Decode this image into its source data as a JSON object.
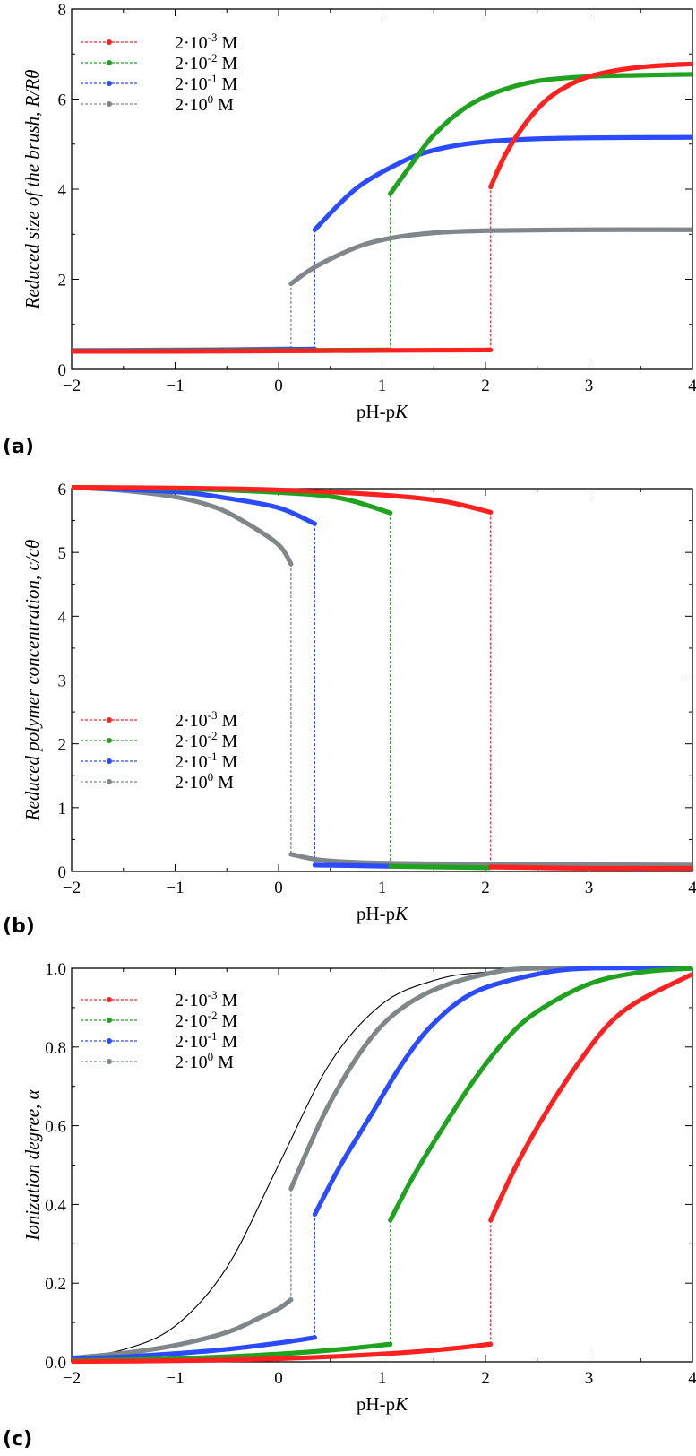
{
  "chart_data": [
    {
      "type": "line",
      "panel_label": "(a)",
      "xlabel": "pH-pK",
      "ylabel": "Reduced size of the brush, R/Rθ",
      "xlim": [
        -2,
        4
      ],
      "ylim": [
        0,
        8
      ],
      "xticks": [
        -2,
        -1,
        0,
        1,
        2,
        3,
        4
      ],
      "yticks": [
        0,
        2,
        4,
        6,
        8
      ],
      "grid": false,
      "legend_position": "top-left",
      "series": [
        {
          "name": "2·10⁻³ M",
          "label_base": "2·10",
          "label_exp": "-3",
          "label_unit": " M",
          "color": "#ff2020",
          "collapsed": [
            [
              -2,
              0.4
            ],
            [
              -1,
              0.4
            ],
            [
              0,
              0.41
            ],
            [
              1,
              0.42
            ],
            [
              2.05,
              0.43
            ]
          ],
          "swollen": [
            [
              2.05,
              4.05
            ],
            [
              2.2,
              4.8
            ],
            [
              2.4,
              5.5
            ],
            [
              2.6,
              6.0
            ],
            [
              2.8,
              6.3
            ],
            [
              3.0,
              6.5
            ],
            [
              3.3,
              6.65
            ],
            [
              3.6,
              6.73
            ],
            [
              4.0,
              6.78
            ]
          ],
          "transition_x": 2.05
        },
        {
          "name": "2·10⁻² M",
          "label_base": "2·10",
          "label_exp": "-2",
          "label_unit": " M",
          "color": "#1fa31f",
          "collapsed": [
            [
              -2,
              0.4
            ],
            [
              -1,
              0.41
            ],
            [
              0,
              0.42
            ],
            [
              1.08,
              0.43
            ]
          ],
          "swollen": [
            [
              1.08,
              3.9
            ],
            [
              1.3,
              4.6
            ],
            [
              1.5,
              5.2
            ],
            [
              1.8,
              5.8
            ],
            [
              2.1,
              6.15
            ],
            [
              2.5,
              6.4
            ],
            [
              3.0,
              6.5
            ],
            [
              3.5,
              6.53
            ],
            [
              4.0,
              6.55
            ]
          ],
          "transition_x": 1.08
        },
        {
          "name": "2·10⁻¹ M",
          "label_base": "2·10",
          "label_exp": "-1",
          "label_unit": " M",
          "color": "#2a4bff",
          "collapsed": [
            [
              -2,
              0.41
            ],
            [
              -1,
              0.42
            ],
            [
              0,
              0.44
            ],
            [
              0.35,
              0.45
            ]
          ],
          "swollen": [
            [
              0.35,
              3.1
            ],
            [
              0.6,
              3.7
            ],
            [
              0.8,
              4.1
            ],
            [
              1.1,
              4.5
            ],
            [
              1.4,
              4.8
            ],
            [
              1.8,
              5.0
            ],
            [
              2.3,
              5.1
            ],
            [
              3.0,
              5.14
            ],
            [
              4.0,
              5.15
            ]
          ],
          "transition_x": 0.35
        },
        {
          "name": "2·10⁰ M",
          "label_base": "2·10",
          "label_exp": "0",
          "label_unit": " M",
          "color": "#7f878a",
          "collapsed": [
            [
              -2,
              0.42
            ],
            [
              -1,
              0.43
            ],
            [
              0,
              0.45
            ],
            [
              0.12,
              0.46
            ]
          ],
          "swollen": [
            [
              0.12,
              1.9
            ],
            [
              0.3,
              2.2
            ],
            [
              0.5,
              2.45
            ],
            [
              0.8,
              2.75
            ],
            [
              1.1,
              2.92
            ],
            [
              1.5,
              3.03
            ],
            [
              2.0,
              3.08
            ],
            [
              3.0,
              3.1
            ],
            [
              4.0,
              3.1
            ]
          ],
          "transition_x": 0.12
        }
      ]
    },
    {
      "type": "line",
      "panel_label": "(b)",
      "xlabel": "pH-pK",
      "ylabel": "Reduced polymer concentration, c/cθ",
      "xlim": [
        -2,
        4
      ],
      "ylim": [
        0,
        6
      ],
      "xticks": [
        -2,
        -1,
        0,
        1,
        2,
        3,
        4
      ],
      "yticks": [
        0,
        1,
        2,
        3,
        4,
        5,
        6
      ],
      "grid": false,
      "legend_position": "lower-left",
      "series": [
        {
          "name": "2·10⁻³ M",
          "label_base": "2·10",
          "label_exp": "-3",
          "label_unit": " M",
          "color": "#ff2020",
          "collapsed": [
            [
              -2,
              6.02
            ],
            [
              -1,
              6.01
            ],
            [
              0,
              5.98
            ],
            [
              1,
              5.9
            ],
            [
              1.6,
              5.8
            ],
            [
              2.05,
              5.63
            ]
          ],
          "swollen": [
            [
              2.05,
              0.07
            ],
            [
              2.5,
              0.06
            ],
            [
              3.0,
              0.05
            ],
            [
              4.0,
              0.05
            ]
          ],
          "transition_x": 2.05
        },
        {
          "name": "2·10⁻² M",
          "label_base": "2·10",
          "label_exp": "-2",
          "label_unit": " M",
          "color": "#1fa31f",
          "collapsed": [
            [
              -2,
              6.02
            ],
            [
              -1,
              6.0
            ],
            [
              0,
              5.94
            ],
            [
              0.6,
              5.85
            ],
            [
              1.08,
              5.62
            ]
          ],
          "swollen": [
            [
              1.08,
              0.08
            ],
            [
              1.5,
              0.07
            ],
            [
              2.0,
              0.06
            ],
            [
              2.05,
              0.06
            ]
          ],
          "transition_x": 1.08
        },
        {
          "name": "2·10⁻¹ M",
          "label_base": "2·10",
          "label_exp": "-1",
          "label_unit": " M",
          "color": "#2a4bff",
          "collapsed": [
            [
              -2,
              6.02
            ],
            [
              -1,
              5.95
            ],
            [
              -0.5,
              5.85
            ],
            [
              0,
              5.7
            ],
            [
              0.35,
              5.45
            ]
          ],
          "swollen": [
            [
              0.35,
              0.1
            ],
            [
              0.8,
              0.09
            ],
            [
              1.08,
              0.08
            ]
          ],
          "transition_x": 0.35
        },
        {
          "name": "2·10⁰ M",
          "label_base": "2·10",
          "label_exp": "0",
          "label_unit": " M",
          "color": "#7f878a",
          "collapsed": [
            [
              -2,
              6.02
            ],
            [
              -1.5,
              5.97
            ],
            [
              -1,
              5.87
            ],
            [
              -0.6,
              5.7
            ],
            [
              -0.3,
              5.45
            ],
            [
              0,
              5.12
            ],
            [
              0.12,
              4.82
            ]
          ],
          "swollen": [
            [
              0.12,
              0.27
            ],
            [
              0.4,
              0.18
            ],
            [
              0.8,
              0.14
            ],
            [
              1.5,
              0.12
            ],
            [
              2.5,
              0.11
            ],
            [
              4.0,
              0.1
            ]
          ],
          "transition_x": 0.12
        }
      ]
    },
    {
      "type": "line",
      "panel_label": "(c)",
      "xlabel": "pH-pK",
      "ylabel": "Ionization degree, α",
      "xlim": [
        -2,
        4
      ],
      "ylim": [
        0,
        1
      ],
      "xticks": [
        -2,
        -1,
        0,
        1,
        2,
        3,
        4
      ],
      "yticks": [
        0.0,
        0.2,
        0.4,
        0.6,
        0.8,
        1.0
      ],
      "ytick_labels": [
        "0.0",
        "0.2",
        "0.4",
        "0.6",
        "0.8",
        "1.0"
      ],
      "grid": false,
      "legend_position": "top-left",
      "reference_curve": {
        "color": "#000000",
        "points": [
          [
            -2,
            0.01
          ],
          [
            -1.5,
            0.031
          ],
          [
            -1,
            0.091
          ],
          [
            -0.5,
            0.24
          ],
          [
            0,
            0.5
          ],
          [
            0.5,
            0.76
          ],
          [
            1,
            0.909
          ],
          [
            1.5,
            0.969
          ],
          [
            2,
            0.99
          ],
          [
            3,
            0.999
          ],
          [
            4,
            1.0
          ]
        ]
      },
      "series": [
        {
          "name": "2·10⁻³ M",
          "label_base": "2·10",
          "label_exp": "-3",
          "label_unit": " M",
          "color": "#ff2020",
          "collapsed": [
            [
              -2,
              0.001
            ],
            [
              -1,
              0.003
            ],
            [
              0,
              0.008
            ],
            [
              1,
              0.02
            ],
            [
              1.6,
              0.032
            ],
            [
              2.05,
              0.045
            ]
          ],
          "swollen": [
            [
              2.05,
              0.36
            ],
            [
              2.3,
              0.5
            ],
            [
              2.6,
              0.64
            ],
            [
              2.9,
              0.76
            ],
            [
              3.2,
              0.86
            ],
            [
              3.5,
              0.92
            ],
            [
              4.0,
              0.985
            ]
          ],
          "transition_x": 2.05
        },
        {
          "name": "2·10⁻² M",
          "label_base": "2·10",
          "label_exp": "-2",
          "label_unit": " M",
          "color": "#1fa31f",
          "collapsed": [
            [
              -2,
              0.003
            ],
            [
              -1,
              0.008
            ],
            [
              0,
              0.02
            ],
            [
              0.6,
              0.032
            ],
            [
              1.08,
              0.045
            ]
          ],
          "swollen": [
            [
              1.08,
              0.36
            ],
            [
              1.3,
              0.47
            ],
            [
              1.6,
              0.6
            ],
            [
              1.9,
              0.72
            ],
            [
              2.2,
              0.82
            ],
            [
              2.5,
              0.89
            ],
            [
              3.0,
              0.96
            ],
            [
              3.5,
              0.99
            ],
            [
              4.0,
              1.0
            ]
          ],
          "transition_x": 1.08
        },
        {
          "name": "2·10⁻¹ M",
          "label_base": "2·10",
          "label_exp": "-1",
          "label_unit": " M",
          "color": "#2a4bff",
          "collapsed": [
            [
              -2,
              0.008
            ],
            [
              -1.5,
              0.013
            ],
            [
              -1,
              0.021
            ],
            [
              -0.5,
              0.032
            ],
            [
              0,
              0.048
            ],
            [
              0.35,
              0.062
            ]
          ],
          "swollen": [
            [
              0.35,
              0.375
            ],
            [
              0.6,
              0.5
            ],
            [
              0.9,
              0.63
            ],
            [
              1.2,
              0.76
            ],
            [
              1.5,
              0.86
            ],
            [
              1.9,
              0.94
            ],
            [
              2.5,
              0.985
            ],
            [
              3.0,
              1.0
            ],
            [
              4.0,
              1.0
            ]
          ],
          "transition_x": 0.35
        },
        {
          "name": "2·10⁰ M",
          "label_base": "2·10",
          "label_exp": "0",
          "label_unit": " M",
          "color": "#7f878a",
          "collapsed": [
            [
              -2,
              0.01
            ],
            [
              -1.5,
              0.022
            ],
            [
              -1,
              0.042
            ],
            [
              -0.5,
              0.075
            ],
            [
              -0.2,
              0.11
            ],
            [
              0,
              0.135
            ],
            [
              0.12,
              0.158
            ]
          ],
          "swollen": [
            [
              0.12,
              0.44
            ],
            [
              0.3,
              0.55
            ],
            [
              0.5,
              0.66
            ],
            [
              0.8,
              0.79
            ],
            [
              1.1,
              0.88
            ],
            [
              1.5,
              0.945
            ],
            [
              2.0,
              0.985
            ],
            [
              2.5,
              1.0
            ],
            [
              4.0,
              1.0
            ]
          ],
          "transition_x": 0.12
        }
      ]
    }
  ]
}
